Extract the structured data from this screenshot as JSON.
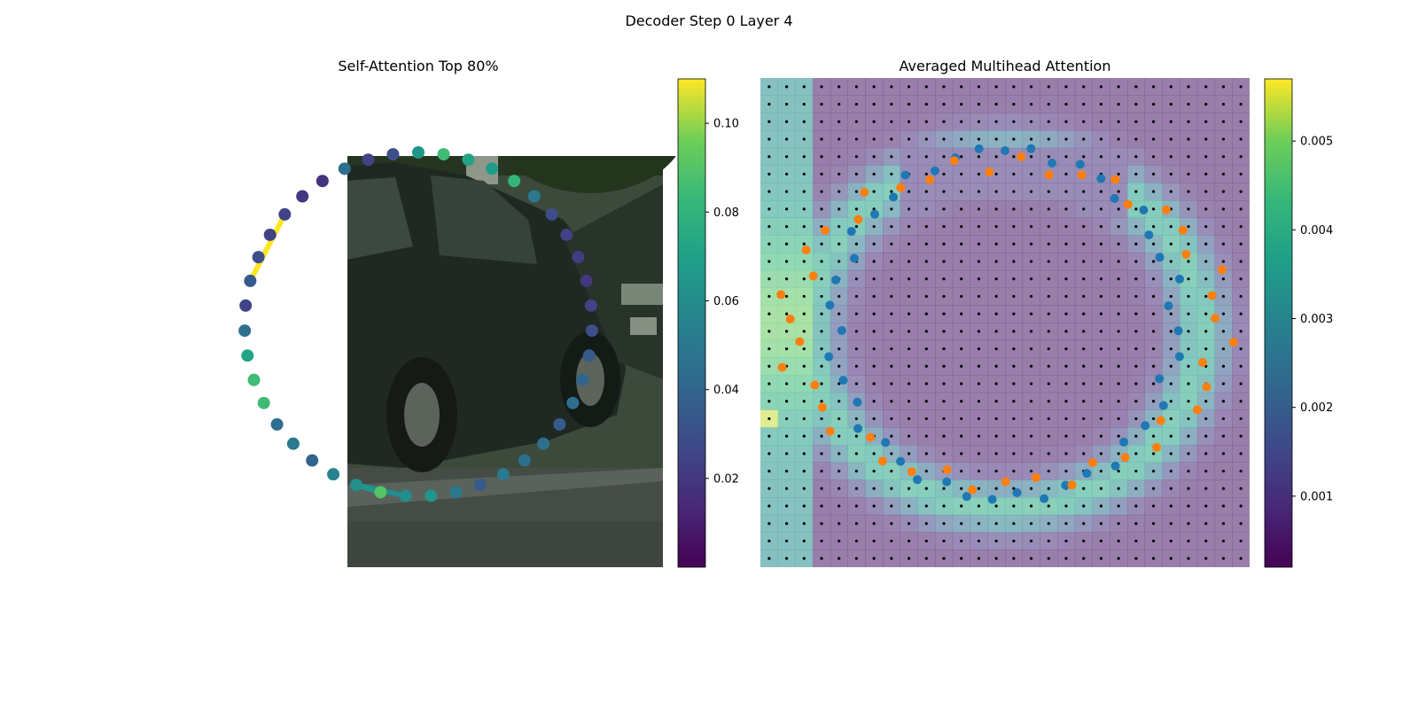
{
  "figure": {
    "title": "Decoder Step 0 Layer 4"
  },
  "chart_data": [
    {
      "type": "scatter",
      "title": "Self-Attention Top 80%",
      "background": "photo: dark green car parked on street",
      "point_count": 43,
      "colormap": "viridis",
      "colorbar": {
        "min": 0.0,
        "max": 0.11,
        "ticks": [
          "0.02",
          "0.04",
          "0.06",
          "0.08",
          "0.10"
        ],
        "tick_values": [
          0.02,
          0.04,
          0.06,
          0.08,
          0.1
        ]
      },
      "point_weights": [
        0.065,
        0.085,
        0.072,
        0.068,
        0.082,
        0.05,
        0.03,
        0.025,
        0.022,
        0.02,
        0.025,
        0.03,
        0.035,
        0.04,
        0.045,
        0.035,
        0.045,
        0.045,
        0.05,
        0.035,
        0.05,
        0.065,
        0.06,
        0.09,
        0.062,
        0.055,
        0.04,
        0.05,
        0.045,
        0.085,
        0.085,
        0.072,
        0.045,
        0.025,
        0.035,
        0.03,
        0.025,
        0.025,
        0.02,
        0.018,
        0.045,
        0.025,
        0.03
      ],
      "top_links": [
        {
          "from": 34,
          "to": 37,
          "weight": 0.11
        },
        {
          "from": 24,
          "to": 22,
          "weight": 0.06
        },
        {
          "from": 23,
          "to": 24,
          "weight": 0.065
        }
      ]
    },
    {
      "type": "heatmap",
      "title": "Averaged Multihead Attention",
      "background": "photo: dark green car parked on street (dimmed)",
      "grid": {
        "rows": 28,
        "cols": 28
      },
      "colormap": "viridis",
      "colorbar": {
        "min": 0.0002,
        "max": 0.0057,
        "ticks": [
          "0.001",
          "0.002",
          "0.003",
          "0.004",
          "0.005"
        ],
        "tick_values": [
          0.001,
          0.002,
          0.003,
          0.004,
          0.005
        ]
      },
      "series": [
        {
          "color": "#1f77b4",
          "point_count": 43
        },
        {
          "color": "#ff7f0e",
          "point_count": 43
        }
      ]
    }
  ]
}
